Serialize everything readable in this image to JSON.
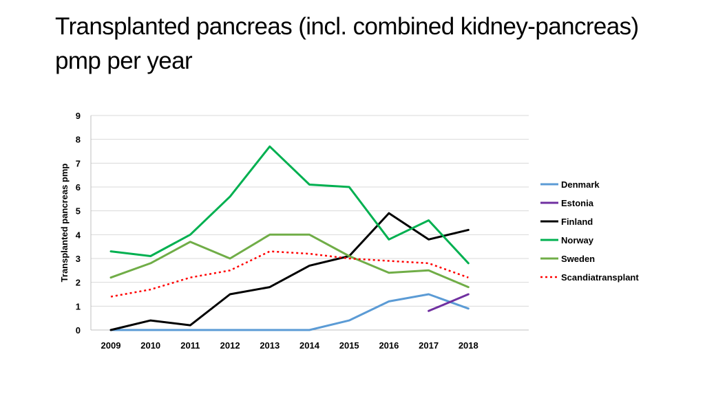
{
  "slide": {
    "title": "Transplanted pancreas (incl. combined kidney-pancreas) pmp per year"
  },
  "chart_data": {
    "type": "line",
    "title": "",
    "xlabel": "",
    "ylabel": "Transplanted pancreas pmp",
    "x": [
      "2009",
      "2010",
      "2011",
      "2012",
      "2013",
      "2014",
      "2015",
      "2016",
      "2017",
      "2018"
    ],
    "ylim": [
      0,
      9
    ],
    "yticks": [
      0,
      1,
      2,
      3,
      4,
      5,
      6,
      7,
      8,
      9
    ],
    "grid": true,
    "legend_position": "right",
    "series": [
      {
        "name": "Denmark",
        "color": "#5b9bd5",
        "dash": "solid",
        "values": [
          0,
          0,
          0,
          0,
          0,
          0,
          0.4,
          1.2,
          1.5,
          0.9
        ]
      },
      {
        "name": "Estonia",
        "color": "#7030a0",
        "dash": "solid",
        "values": [
          null,
          null,
          null,
          null,
          null,
          null,
          null,
          null,
          0.8,
          1.5
        ]
      },
      {
        "name": "Finland",
        "color": "#000000",
        "dash": "solid",
        "values": [
          0,
          0.4,
          0.2,
          1.5,
          1.8,
          2.7,
          3.1,
          4.9,
          3.8,
          4.2
        ]
      },
      {
        "name": "Norway",
        "color": "#00b050",
        "dash": "solid",
        "values": [
          3.3,
          3.1,
          4.0,
          5.6,
          7.7,
          6.1,
          6.0,
          3.8,
          4.6,
          2.8
        ]
      },
      {
        "name": "Sweden",
        "color": "#70ad47",
        "dash": "solid",
        "values": [
          2.2,
          2.8,
          3.7,
          3.0,
          4.0,
          4.0,
          3.1,
          2.4,
          2.5,
          1.8
        ]
      },
      {
        "name": "Scandiatransplant",
        "color": "#ff0000",
        "dash": "dotted",
        "values": [
          1.4,
          1.7,
          2.2,
          2.5,
          3.3,
          3.2,
          3.0,
          2.9,
          2.8,
          2.2
        ]
      }
    ]
  }
}
